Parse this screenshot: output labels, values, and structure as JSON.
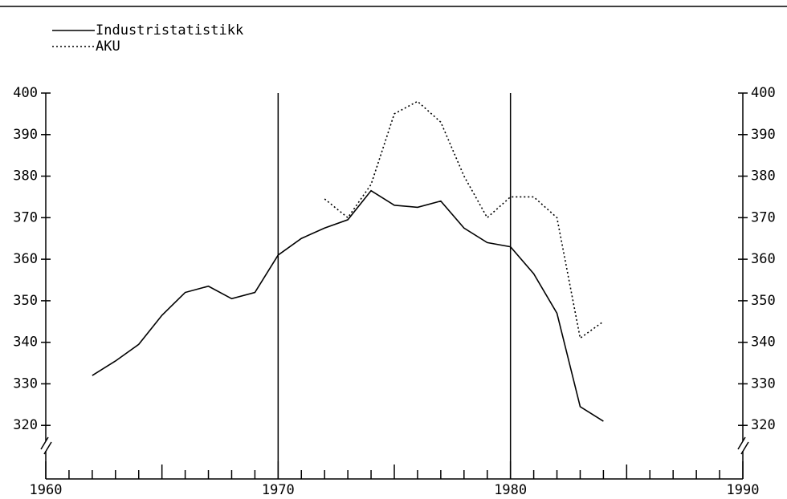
{
  "chart_data": {
    "type": "line",
    "x": [
      1962,
      1963,
      1964,
      1965,
      1966,
      1967,
      1968,
      1969,
      1970,
      1971,
      1972,
      1973,
      1974,
      1975,
      1976,
      1977,
      1978,
      1979,
      1980,
      1981,
      1982,
      1983,
      1984
    ],
    "series": [
      {
        "name": "Industristatistikk",
        "color": "#000000",
        "style": "solid",
        "values": [
          332,
          335.5,
          339.5,
          346.5,
          352,
          353.5,
          350.5,
          352,
          361,
          365,
          367.5,
          369.5,
          376.5,
          373,
          372.5,
          374,
          367.5,
          364,
          363,
          356.5,
          347,
          324.5,
          321
        ]
      },
      {
        "name": "AKU",
        "color": "#000000",
        "style": "dotted",
        "values": [
          null,
          null,
          null,
          null,
          null,
          null,
          null,
          null,
          null,
          null,
          374.5,
          370,
          378,
          395,
          398,
          393,
          380,
          370,
          375,
          375,
          370,
          341,
          345
        ]
      }
    ],
    "xlim": [
      1960,
      1990
    ],
    "xticks": [
      1960,
      1970,
      1980,
      1990
    ],
    "x_minor_ticks": [
      1961,
      1962,
      1963,
      1964,
      1965,
      1966,
      1967,
      1968,
      1969,
      1971,
      1972,
      1973,
      1974,
      1975,
      1976,
      1977,
      1978,
      1979,
      1981,
      1982,
      1983,
      1984,
      1985,
      1986,
      1987,
      1988,
      1989
    ],
    "ylim": [
      310,
      400
    ],
    "yticks": [
      320,
      330,
      340,
      350,
      360,
      370,
      380,
      390,
      400
    ],
    "y2lim": [
      310,
      400
    ],
    "y2ticks": [
      320,
      330,
      340,
      350,
      360,
      370,
      380,
      390,
      400
    ],
    "vlines": [
      1970,
      1980
    ],
    "legend": "top-left"
  }
}
